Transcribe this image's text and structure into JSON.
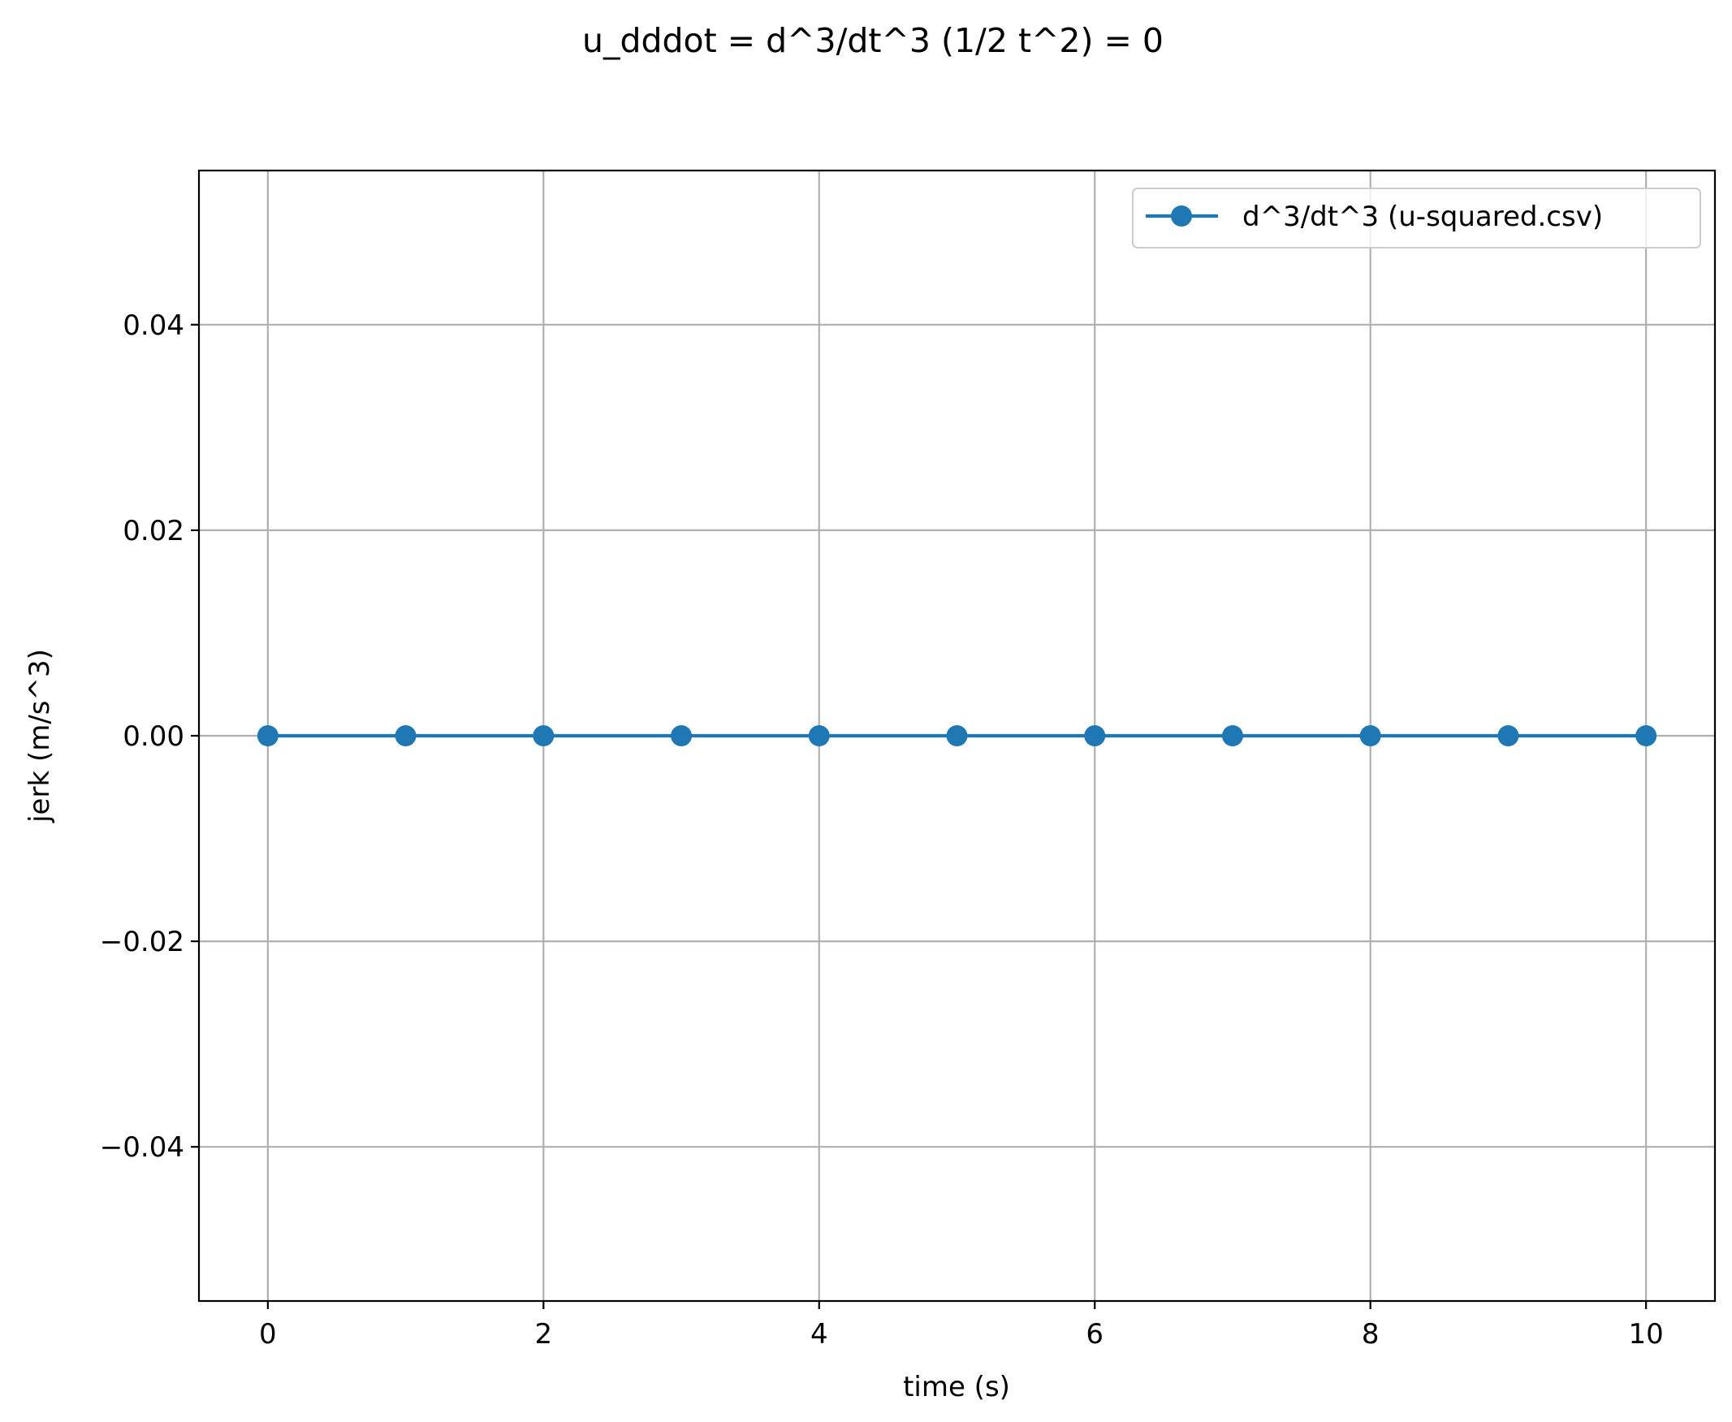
{
  "chart_data": {
    "type": "line",
    "title": "u_dddot = d^3/dt^3 (1/2 t^2) = 0",
    "xlabel": "time (s)",
    "ylabel": "jerk (m/s^3)",
    "xlim": [
      -0.5,
      10.5
    ],
    "ylim": [
      -0.055,
      0.055
    ],
    "xticks": [
      0,
      2,
      4,
      6,
      8,
      10
    ],
    "xtick_labels": [
      "0",
      "2",
      "4",
      "6",
      "8",
      "10"
    ],
    "yticks": [
      -0.04,
      -0.02,
      0.0,
      0.02,
      0.04
    ],
    "ytick_labels": [
      "−0.04",
      "−0.02",
      "0.00",
      "0.02",
      "0.04"
    ],
    "grid": true,
    "legend_position": "top-right",
    "series": [
      {
        "name": "d^3/dt^3 (u-squared.csv)",
        "color": "#1f77b4",
        "marker": "circle",
        "x": [
          0,
          1,
          2,
          3,
          4,
          5,
          6,
          7,
          8,
          9,
          10
        ],
        "y": [
          0,
          0,
          0,
          0,
          0,
          0,
          0,
          0,
          0,
          0,
          0
        ]
      }
    ]
  }
}
